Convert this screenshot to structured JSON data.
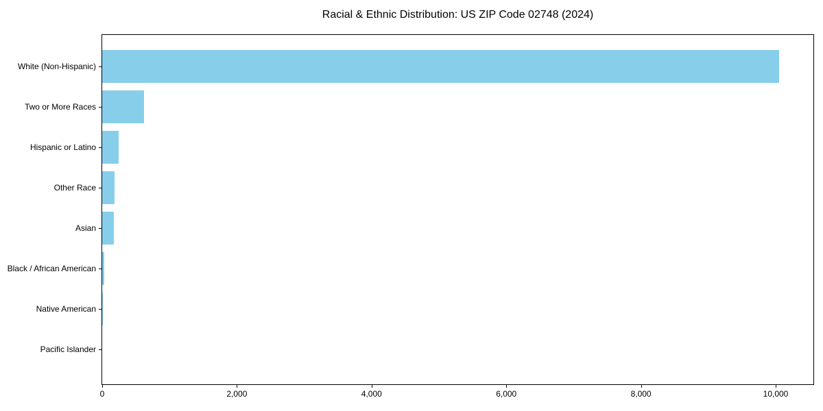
{
  "page": {
    "background": "#ffffff"
  },
  "chart_data": {
    "type": "bar",
    "orientation": "horizontal",
    "title": "Racial & Ethnic Distribution: US ZIP Code 02748 (2024)",
    "categories": [
      "White (Non-Hispanic)",
      "Two or More Races",
      "Hispanic or Latino",
      "Other Race",
      "Asian",
      "Black / African American",
      "Native American",
      "Pacific Islander"
    ],
    "values": [
      10050,
      620,
      240,
      180,
      170,
      35,
      5,
      0
    ],
    "xlabel": "",
    "ylabel": "",
    "xlim": [
      0,
      10560
    ],
    "x_ticks": [
      0,
      2000,
      4000,
      6000,
      8000,
      10000
    ],
    "x_tick_labels": [
      "0",
      "2,000",
      "4,000",
      "6,000",
      "8,000",
      "10,000"
    ],
    "bar_color": "#87CEEB",
    "axis_color": "#000000",
    "text_color": "#000000",
    "grid": false,
    "legend": null
  }
}
